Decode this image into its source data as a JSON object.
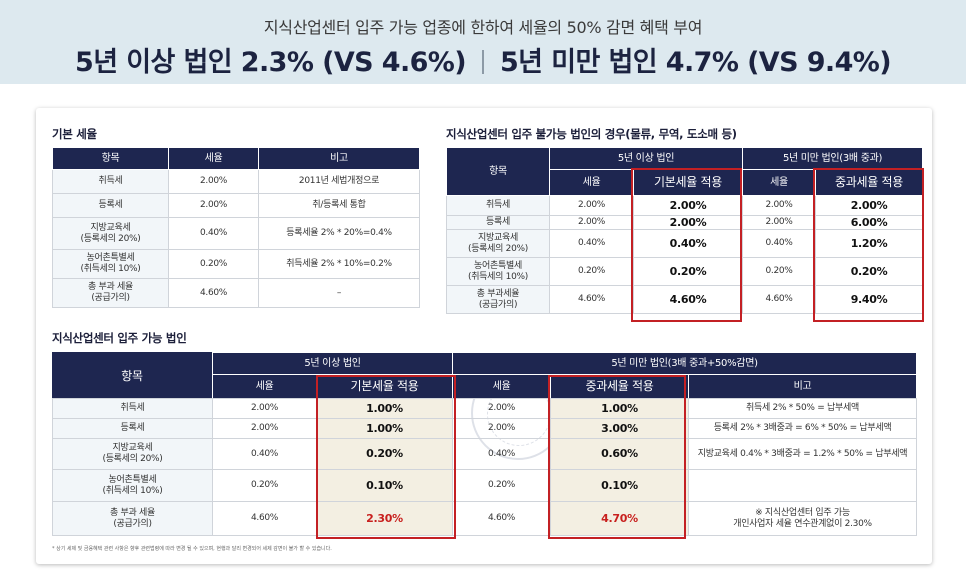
{
  "header": {
    "subtitle": "지식산업센터 입주 가능 업종에 한하여 세율의 50% 감면 혜택 부여",
    "title_left": "5년 이상 법인 2.3% (VS 4.6%)",
    "title_right": "5년 미만 법인 4.7% (VS 9.4%)"
  },
  "basic": {
    "title": "기본 세율",
    "columns": [
      "항목",
      "세율",
      "비고"
    ],
    "rows": [
      {
        "item": [
          "취득세"
        ],
        "rate": "2.00%",
        "note": "2011년 세법개정으로"
      },
      {
        "item": [
          "등록세"
        ],
        "rate": "2.00%",
        "note": "취/등록세 통합"
      },
      {
        "item": [
          "지방교육세",
          "(등록세의 20%)"
        ],
        "rate": "0.40%",
        "note": "등록세율 2% * 20%=0.4%"
      },
      {
        "item": [
          "농어촌특별세",
          "(취득세의 10%)"
        ],
        "rate": "0.20%",
        "note": "취득세율 2% * 10%=0.2%"
      },
      {
        "item": [
          "총 부과 세율",
          "(공급가의)"
        ],
        "rate": "4.60%",
        "note": "–"
      }
    ]
  },
  "unavailable": {
    "title": "지식산업센터 입주 불가능 법인의 경우(물류, 무역, 도소매 등)",
    "col_item": "항목",
    "group1": "5년 이상 법인",
    "group2": "5년 미만 법인(3배 중과)",
    "sub_rate1": "세율",
    "sub_apply1": "기본세율 적용",
    "sub_rate2": "세율",
    "sub_apply2": "중과세율 적용",
    "rows": [
      {
        "item": [
          "취득세"
        ],
        "rate1": "2.00%",
        "apply1": "2.00%",
        "rate2": "2.00%",
        "apply2": "2.00%"
      },
      {
        "item": [
          "등록세"
        ],
        "rate1": "2.00%",
        "apply1": "2.00%",
        "rate2": "2.00%",
        "apply2": "6.00%"
      },
      {
        "item": [
          "지방교육세",
          "(등록세의 20%)"
        ],
        "rate1": "0.40%",
        "apply1": "0.40%",
        "rate2": "0.40%",
        "apply2": "1.20%"
      },
      {
        "item": [
          "농어촌특별세",
          "(취득세의 10%)"
        ],
        "rate1": "0.20%",
        "apply1": "0.20%",
        "rate2": "0.20%",
        "apply2": "0.20%"
      },
      {
        "item": [
          "총 부과세율",
          "(공급가의)"
        ],
        "rate1": "4.60%",
        "apply1": "4.60%",
        "rate2": "4.60%",
        "apply2": "9.40%"
      }
    ]
  },
  "available": {
    "title": "지식산업센터 입주 가능 법인",
    "col_item": "항목",
    "group1": "5년 이상 법인",
    "group2": "5년 미만 법인(3배 중과+50%감면)",
    "sub_rate1": "세율",
    "sub_apply1": "기본세율 적용",
    "sub_rate2": "세율",
    "sub_apply2": "중과세율 적용",
    "sub_note": "비고",
    "rows": [
      {
        "item": [
          "취득세"
        ],
        "rate1": "2.00%",
        "apply1": "1.00%",
        "rate2": "2.00%",
        "apply2": "1.00%",
        "note": [
          "취득세 2% * 50% = 납부세액"
        ]
      },
      {
        "item": [
          "등록세"
        ],
        "rate1": "2.00%",
        "apply1": "1.00%",
        "rate2": "2.00%",
        "apply2": "3.00%",
        "note": [
          "등록세 2% * 3배중과 = 6% * 50% = 납부세액"
        ]
      },
      {
        "item": [
          "지방교육세",
          "(등록세의 20%)"
        ],
        "rate1": "0.40%",
        "apply1": "0.20%",
        "rate2": "0.40%",
        "apply2": "0.60%",
        "note": [
          "지방교육세 0.4% * 3배중과 = 1.2% * 50% = 납부세액"
        ]
      },
      {
        "item": [
          "농어촌특별세",
          "(취득세의 10%)"
        ],
        "rate1": "0.20%",
        "apply1": "0.10%",
        "rate2": "0.20%",
        "apply2": "0.10%",
        "note": [
          ""
        ]
      },
      {
        "item": [
          "총 부과 세율",
          "(공급가의)"
        ],
        "rate1": "4.60%",
        "apply1": "2.30%",
        "rate2": "4.60%",
        "apply2": "4.70%",
        "note": [
          "※ 지식산업센터 입주 가능",
          "개인사업자 세율 연수관계없이 2.30%"
        ]
      }
    ]
  },
  "footnote": "* 상기 세제 및 금융혜택 관련 사항은 향후 관련법령에 따라 변경 될 수 있으며, 현행과 달리 변경되어 세제 감면이 불가 할 수 있습니다.",
  "colors": {
    "navy": "#1e2650",
    "accent_red": "#c32024",
    "header_bg": "#dde9ef"
  }
}
